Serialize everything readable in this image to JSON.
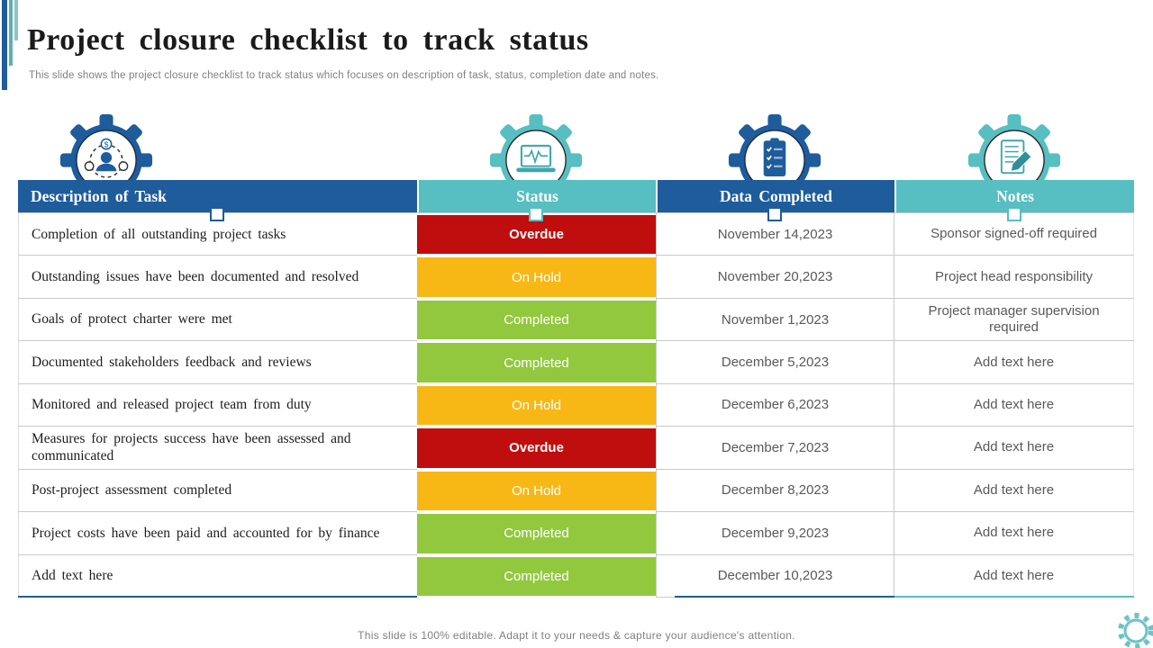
{
  "slide": {
    "title": "Project closure checklist to track status",
    "subtitle": "This slide shows the project closure checklist to track status which focuses on description of task, status, completion date and notes.",
    "footer": "This slide is 100% editable. Adapt it to your needs & capture your audience's attention."
  },
  "colors": {
    "blue": "#1E5C9B",
    "teal": "#57BEC1",
    "overdue": "#C00D0E",
    "on_hold": "#F7B816",
    "completed": "#92C83E",
    "text_dark": "#1C1C1C",
    "text_gray": "#595959",
    "muted": "#7F7F7F"
  },
  "table": {
    "columns": [
      {
        "label": "Description of Task",
        "icon": "team-money-gear-icon",
        "color": "#1E5C9B"
      },
      {
        "label": "Status",
        "icon": "laptop-pulse-gear-icon",
        "color": "#57BEC1"
      },
      {
        "label": "Data Completed",
        "icon": "checklist-gear-icon",
        "color": "#1E5C9B"
      },
      {
        "label": "Notes",
        "icon": "notepad-pencil-gear-icon",
        "color": "#57BEC1"
      }
    ],
    "rows": [
      {
        "task": "Completion of all outstanding project tasks",
        "status": "Overdue",
        "status_key": "overdue",
        "date": "November 14,2023",
        "note": "Sponsor signed-off required"
      },
      {
        "task": "Outstanding issues have been documented and resolved",
        "status": "On Hold",
        "status_key": "on_hold",
        "date": "November 20,2023",
        "note": "Project head responsibility"
      },
      {
        "task": "Goals of protect charter were met",
        "status": "Completed",
        "status_key": "completed",
        "date": "November 1,2023",
        "note": "Project manager supervision required"
      },
      {
        "task": "Documented stakeholders feedback and reviews",
        "status": "Completed",
        "status_key": "completed",
        "date": "December 5,2023",
        "note": "Add text here"
      },
      {
        "task": "Monitored and released project team from duty",
        "status": "On Hold",
        "status_key": "on_hold",
        "date": "December 6,2023",
        "note": "Add text here"
      },
      {
        "task": "Measures for projects success have been assessed and communicated",
        "status": "Overdue",
        "status_key": "overdue",
        "date": "December 7,2023",
        "note": "Add text here"
      },
      {
        "task": "Post-project assessment completed",
        "status": "On Hold",
        "status_key": "on_hold",
        "date": "December 8,2023",
        "note": "Add text here"
      },
      {
        "task": "Project costs have been paid and accounted for by finance",
        "status": "Completed",
        "status_key": "completed",
        "date": "December 9,2023",
        "note": "Add text here"
      },
      {
        "task": "Add text here",
        "status": "Completed",
        "status_key": "completed",
        "date": "December 10,2023",
        "note": "Add text here"
      }
    ]
  }
}
